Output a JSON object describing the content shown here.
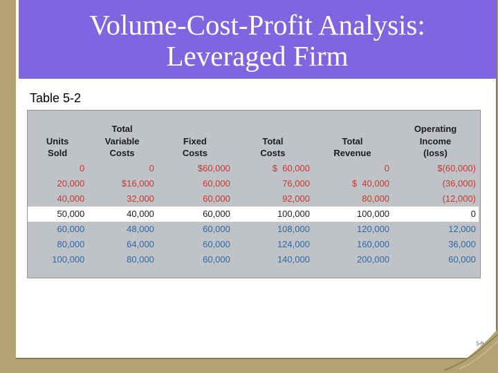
{
  "slide": {
    "title_line1": "Volume-Cost-Profit Analysis:",
    "title_line2": "Leveraged Firm",
    "subtitle": "Table 5-2",
    "page_number": "5-9"
  },
  "table": {
    "headers": [
      [
        "",
        "Units",
        "Sold"
      ],
      [
        "Total",
        "Variable",
        "Costs"
      ],
      [
        "",
        "Fixed",
        "Costs"
      ],
      [
        "",
        "Total",
        "Costs"
      ],
      [
        "",
        "Total",
        "Revenue"
      ],
      [
        "Operating",
        "Income",
        "(loss)"
      ]
    ],
    "rows": [
      {
        "zone": "below",
        "cells": [
          "0",
          "0",
          "$60,000",
          "$  60,000",
          "0",
          "$(60,000)"
        ]
      },
      {
        "zone": "below",
        "cells": [
          "20,000",
          "$16,000",
          "60,000",
          "76,000",
          "$  40,000",
          "(36,000)"
        ]
      },
      {
        "zone": "below",
        "cells": [
          "40,000",
          "32,000",
          "60,000",
          "92,000",
          "80,000",
          "(12,000)"
        ]
      },
      {
        "zone": "breakeven",
        "cells": [
          "50,000",
          "40,000",
          "60,000",
          "100,000",
          "100,000",
          "0"
        ]
      },
      {
        "zone": "above",
        "cells": [
          "60,000",
          "48,000",
          "60,000",
          "108,000",
          "120,000",
          "12,000"
        ]
      },
      {
        "zone": "above",
        "cells": [
          "80,000",
          "64,000",
          "60,000",
          "124,000",
          "160,000",
          "36,000"
        ]
      },
      {
        "zone": "above",
        "cells": [
          "100,000",
          "80,000",
          "60,000",
          "140,000",
          "200,000",
          "60,000"
        ]
      }
    ],
    "colors": {
      "below": "#c9362c",
      "breakeven": "#1c1c1c",
      "above": "#2c69a8"
    }
  }
}
